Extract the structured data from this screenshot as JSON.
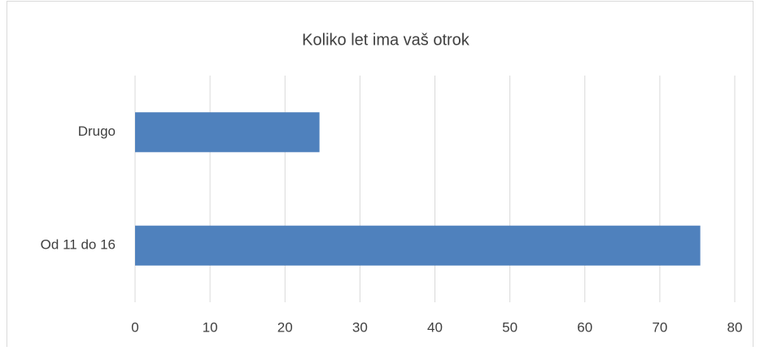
{
  "chart_data": {
    "type": "bar",
    "orientation": "horizontal",
    "title": "Koliko let ima vaš otrok",
    "categories": [
      "Drugo",
      "Od 11 do 16"
    ],
    "values": [
      24.6,
      75.4
    ],
    "color": "#4f81bd",
    "xlim": [
      0,
      80
    ],
    "xticks": [
      0,
      10,
      20,
      30,
      40,
      50,
      60,
      70,
      80
    ],
    "grid": true
  }
}
